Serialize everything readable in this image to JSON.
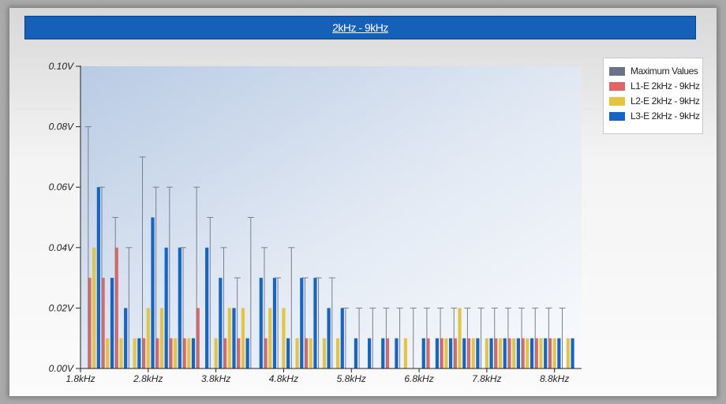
{
  "chart_data": {
    "type": "bar",
    "title": "2kHz - 9kHz",
    "xlabel": "",
    "ylabel": "",
    "ylim": [
      0,
      0.1
    ],
    "yticks": [
      {
        "value": 0.0,
        "label": "0.00V"
      },
      {
        "value": 0.02,
        "label": "0.02V"
      },
      {
        "value": 0.04,
        "label": "0.04V"
      },
      {
        "value": 0.06,
        "label": "0.06V"
      },
      {
        "value": 0.08,
        "label": "0.08V"
      },
      {
        "value": 0.1,
        "label": "0.10V"
      }
    ],
    "xlim": [
      1.8,
      9.2
    ],
    "xticks": [
      {
        "value": 1.8,
        "label": "1.8kHz"
      },
      {
        "value": 2.8,
        "label": "2.8kHz"
      },
      {
        "value": 3.8,
        "label": "3.8kHz"
      },
      {
        "value": 4.8,
        "label": "4.8kHz"
      },
      {
        "value": 5.8,
        "label": "5.8kHz"
      },
      {
        "value": 6.8,
        "label": "6.8kHz"
      },
      {
        "value": 7.8,
        "label": "7.8kHz"
      },
      {
        "value": 8.8,
        "label": "8.8kHz"
      }
    ],
    "x": [
      2.0,
      2.2,
      2.4,
      2.6,
      2.8,
      3.0,
      3.2,
      3.4,
      3.6,
      3.8,
      4.0,
      4.2,
      4.4,
      4.6,
      4.8,
      5.0,
      5.2,
      5.4,
      5.6,
      5.8,
      6.0,
      6.2,
      6.4,
      6.6,
      6.8,
      7.0,
      7.2,
      7.4,
      7.6,
      7.8,
      8.0,
      8.2,
      8.4,
      8.6,
      8.8,
      9.0
    ],
    "series": [
      {
        "name": "Maximum Values",
        "color": "#6b7388",
        "values": [
          0.08,
          0.06,
          0.05,
          0.04,
          0.07,
          0.06,
          0.06,
          0.04,
          0.06,
          0.05,
          0.04,
          0.03,
          0.05,
          0.04,
          0.03,
          0.04,
          0.03,
          0.03,
          0.03,
          0.02,
          0.02,
          0.02,
          0.02,
          0.02,
          0.02,
          0.02,
          0.02,
          0.02,
          0.02,
          0.02,
          0.02,
          0.02,
          0.02,
          0.02,
          0.02,
          0.02
        ]
      },
      {
        "name": "L1-E 2kHz - 9kHz",
        "color": "#e06666",
        "values": [
          0.03,
          0.03,
          0.04,
          0.0,
          0.01,
          0.01,
          0.01,
          0.01,
          0.02,
          0.0,
          0.01,
          0.01,
          0.0,
          0.01,
          0.0,
          0.0,
          0.01,
          0.0,
          0.0,
          0.0,
          0.0,
          0.0,
          0.01,
          0.0,
          0.0,
          0.01,
          0.01,
          0.01,
          0.01,
          0.0,
          0.01,
          0.01,
          0.01,
          0.01,
          0.01,
          0.0
        ]
      },
      {
        "name": "L2-E 2kHz - 9kHz",
        "color": "#e3c542",
        "values": [
          0.04,
          0.01,
          0.01,
          0.01,
          0.02,
          0.02,
          0.01,
          0.01,
          0.0,
          0.01,
          0.02,
          0.02,
          0.0,
          0.02,
          0.02,
          0.01,
          0.01,
          0.01,
          0.01,
          0.0,
          0.0,
          0.0,
          0.0,
          0.01,
          0.0,
          0.0,
          0.01,
          0.02,
          0.01,
          0.01,
          0.01,
          0.01,
          0.01,
          0.01,
          0.01,
          0.01
        ]
      },
      {
        "name": "L3-E 2kHz - 9kHz",
        "color": "#1565c8",
        "values": [
          0.06,
          0.03,
          0.02,
          0.01,
          0.05,
          0.04,
          0.04,
          0.01,
          0.04,
          0.03,
          0.02,
          0.01,
          0.03,
          0.03,
          0.01,
          0.03,
          0.03,
          0.02,
          0.02,
          0.01,
          0.01,
          0.01,
          0.01,
          0.0,
          0.01,
          0.01,
          0.01,
          0.01,
          0.01,
          0.01,
          0.01,
          0.01,
          0.01,
          0.01,
          0.01,
          0.01
        ]
      }
    ],
    "legend_position": "top-right",
    "grid": false
  }
}
